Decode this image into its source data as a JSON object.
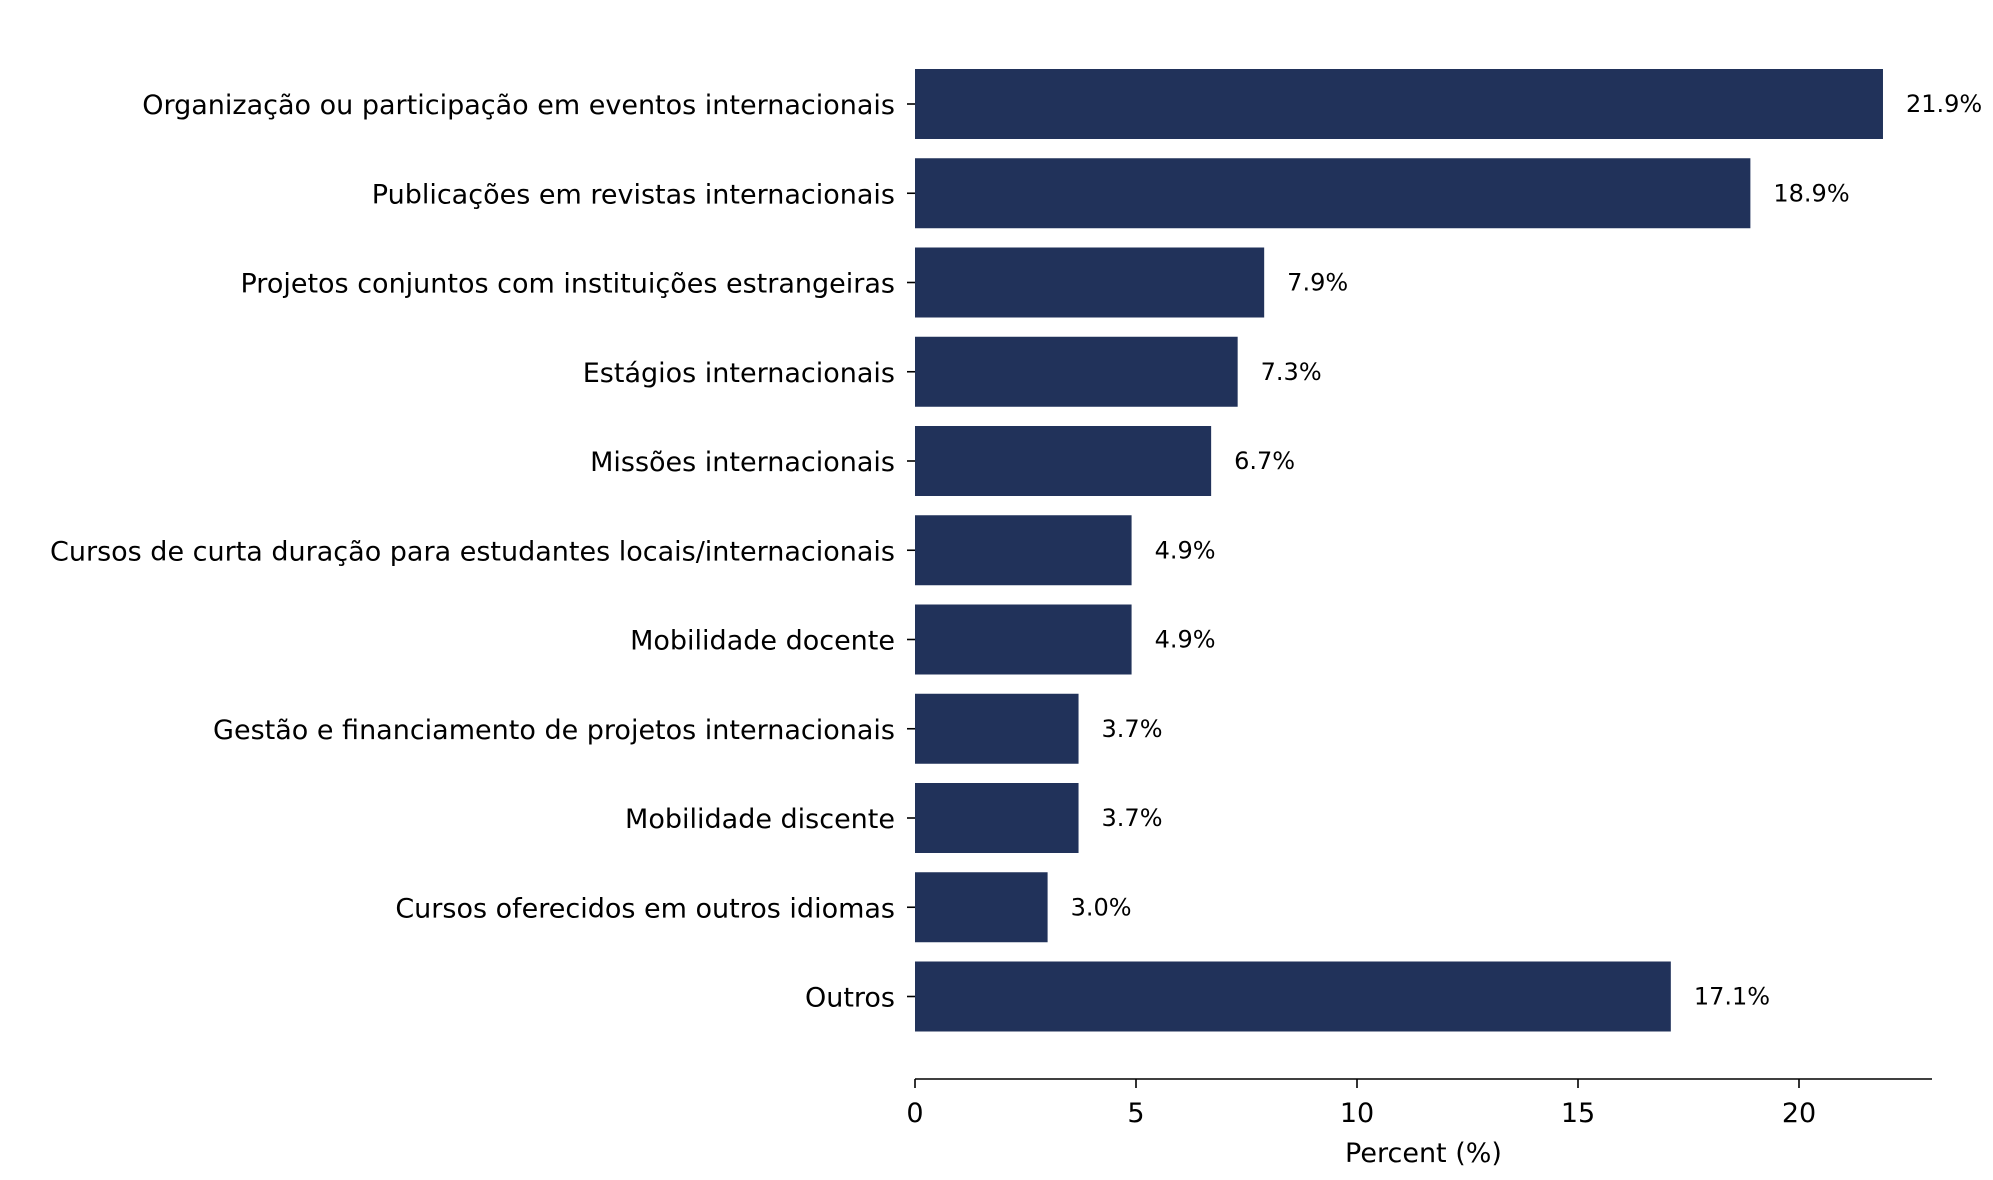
{
  "chart_data": {
    "type": "bar",
    "orientation": "horizontal",
    "categories": [
      "Organização ou participação em eventos internacionais",
      "Publicações em revistas internacionais",
      "Projetos conjuntos com instituições estrangeiras",
      "Estágios internacionais",
      "Missões internacionais",
      "Cursos de curta duração para estudantes locais/internacionais",
      "Mobilidade docente",
      "Gestão e financiamento de projetos internacionais",
      "Mobilidade discente",
      "Cursos oferecidos em outros idiomas",
      "Outros"
    ],
    "values": [
      21.9,
      18.9,
      7.9,
      7.3,
      6.7,
      4.9,
      4.9,
      3.7,
      3.7,
      3.0,
      17.1
    ],
    "value_labels": [
      "21.9%",
      "18.9%",
      "7.9%",
      "7.3%",
      "6.7%",
      "4.9%",
      "4.9%",
      "3.7%",
      "3.7%",
      "3.0%",
      "17.1%"
    ],
    "xlabel": "Percent (%)",
    "ylabel": "",
    "title": "",
    "xlim": [
      0,
      23
    ],
    "xticks": [
      0,
      5,
      10,
      15,
      20
    ],
    "bar_color": "#21325a",
    "grid": false,
    "legend": "none"
  }
}
